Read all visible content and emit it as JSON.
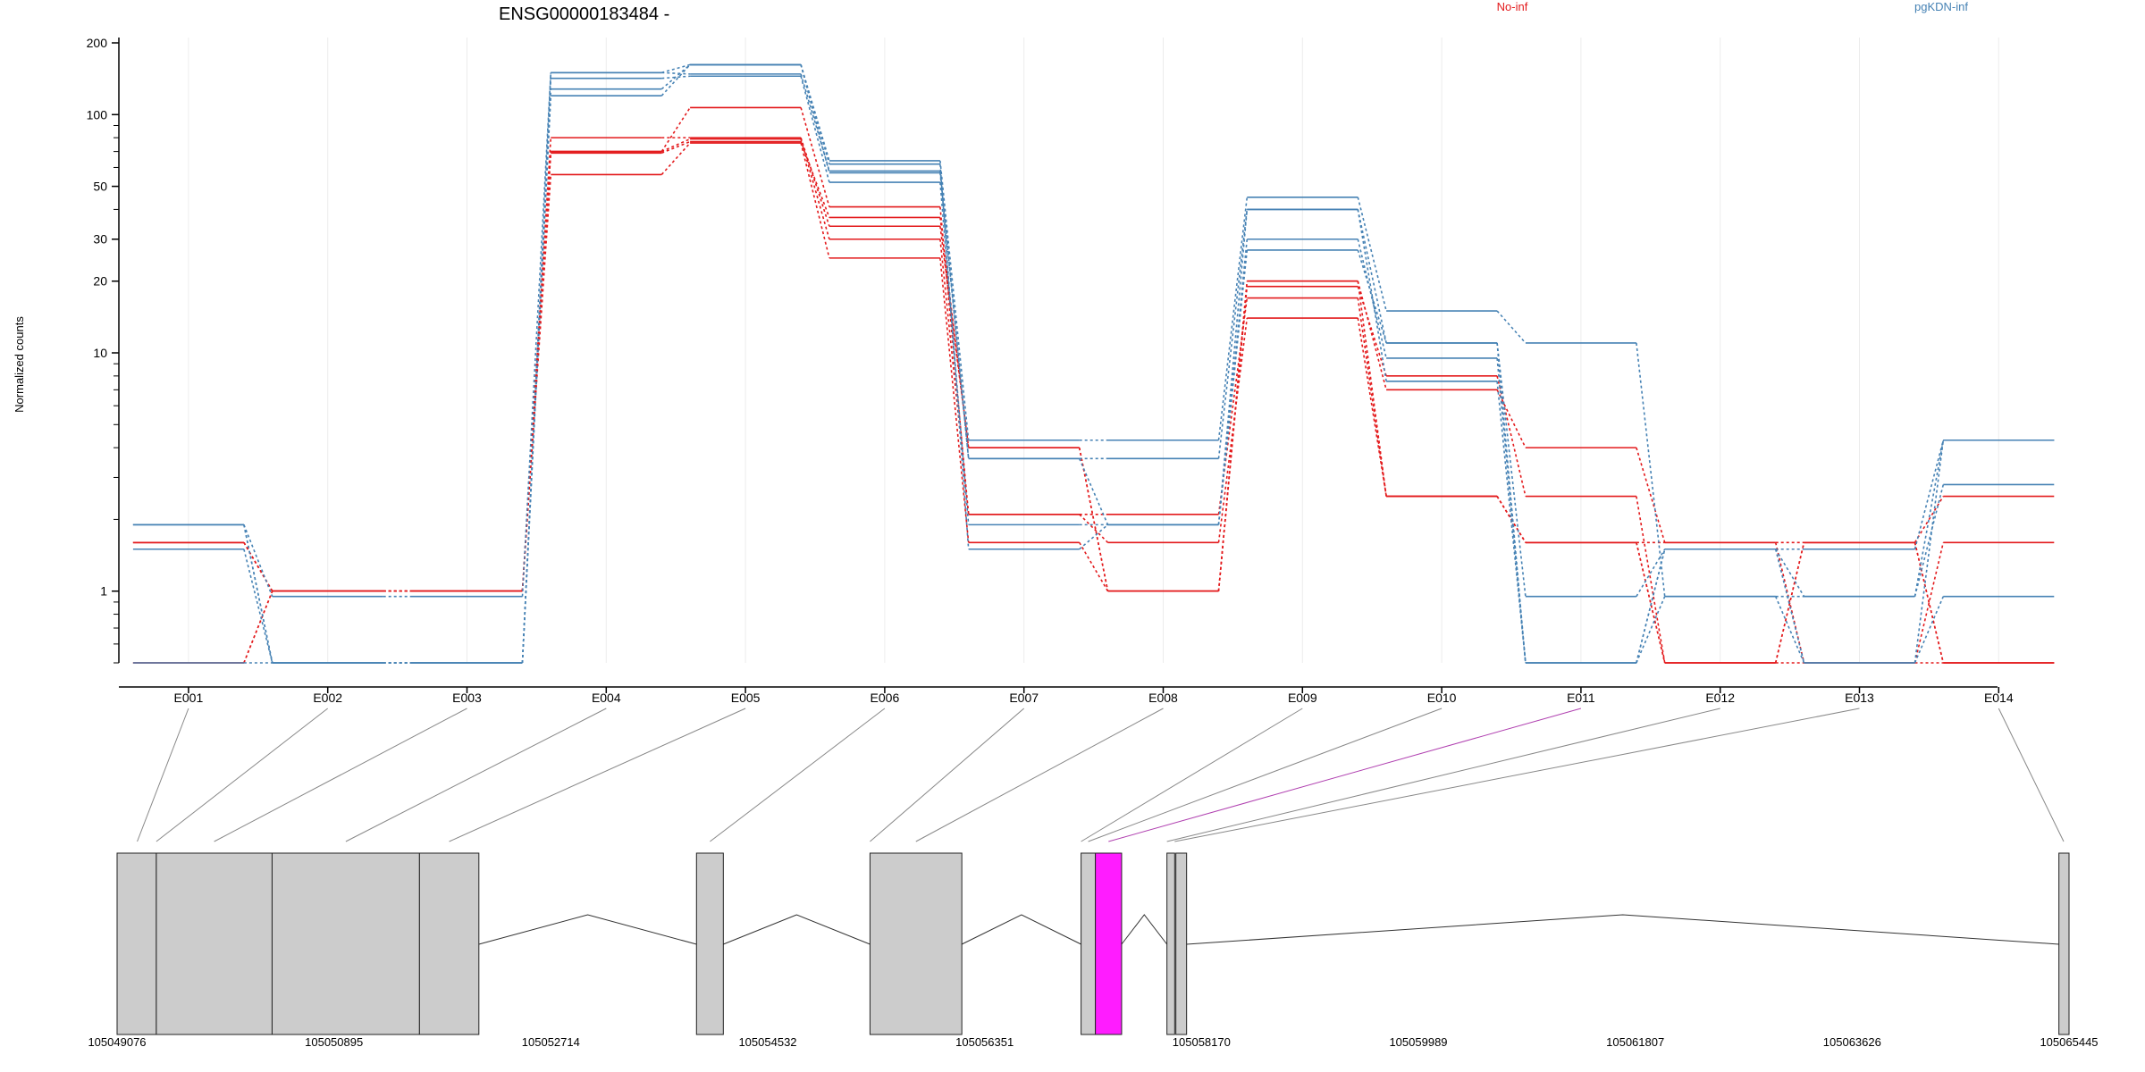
{
  "chart_data": {
    "type": "line",
    "title": "ENSG00000183484 -",
    "ylabel": "Normalized counts",
    "y_scale": "log",
    "ylim": [
      0.5,
      200
    ],
    "y_ticks": [
      1,
      10,
      20,
      30,
      50,
      100,
      200
    ],
    "y_tick_labels": [
      "1",
      "10",
      "20",
      "30",
      "50",
      "100",
      "200"
    ],
    "grid": "vertical lines at exon centers",
    "legend": {
      "placement": "top-right",
      "entries": [
        {
          "label": "No-inf",
          "color": "#e31a1c"
        },
        {
          "label": "pgKDN-inf",
          "color": "#4682b4"
        }
      ]
    },
    "categories": [
      "E001",
      "E002",
      "E003",
      "E004",
      "E005",
      "E006",
      "E007",
      "E008",
      "E009",
      "E010",
      "E011",
      "E012",
      "E013",
      "E014"
    ],
    "highlighted_exon": "E011",
    "series": [
      {
        "group": "No-inf",
        "color": "#e31a1c",
        "values": [
          1.6,
          1.0,
          1.0,
          69,
          77,
          37,
          4.0,
          1.0,
          20,
          7.0,
          4.0,
          1.6,
          1.6,
          0.5
        ]
      },
      {
        "group": "No-inf",
        "color": "#e31a1c",
        "values": [
          1.6,
          1.0,
          1.0,
          56,
          76,
          25,
          1.6,
          1.0,
          19,
          8.0,
          2.5,
          0.5,
          1.6,
          2.5
        ]
      },
      {
        "group": "No-inf",
        "color": "#e31a1c",
        "values": [
          0.5,
          1.0,
          1.0,
          70,
          107,
          41,
          2.1,
          2.1,
          17,
          2.5,
          1.6,
          0.5,
          1.6,
          0.5
        ]
      },
      {
        "group": "No-inf",
        "color": "#e31a1c",
        "values": [
          0.5,
          1.0,
          1.0,
          70,
          79,
          30,
          2.1,
          1.6,
          14,
          2.5,
          1.6,
          1.6,
          0.5,
          0.5
        ]
      },
      {
        "group": "No-inf",
        "color": "#e31a1c",
        "values": [
          1.6,
          1.0,
          1.0,
          80,
          80,
          34,
          4.0,
          1.0,
          20,
          2.5,
          1.6,
          0.5,
          0.5,
          1.6
        ]
      },
      {
        "group": "pgKDN-inf",
        "color": "#4682b4",
        "values": [
          1.9,
          0.95,
          0.95,
          150,
          162,
          64,
          4.3,
          4.3,
          45,
          15,
          11,
          0.95,
          0.95,
          4.3
        ]
      },
      {
        "group": "pgKDN-inf",
        "color": "#4682b4",
        "values": [
          1.9,
          0.5,
          0.5,
          142,
          145,
          52,
          1.9,
          1.9,
          27,
          11,
          0.95,
          1.5,
          1.5,
          4.3
        ]
      },
      {
        "group": "pgKDN-inf",
        "color": "#4682b4",
        "values": [
          1.9,
          0.5,
          0.5,
          128,
          162,
          62,
          1.5,
          1.9,
          30,
          9.5,
          0.5,
          1.5,
          0.95,
          2.8
        ]
      },
      {
        "group": "pgKDN-inf",
        "color": "#4682b4",
        "values": [
          0.5,
          0.5,
          0.5,
          120,
          162,
          57,
          3.6,
          1.9,
          40,
          7.6,
          0.5,
          1.5,
          0.5,
          0.95
        ]
      },
      {
        "group": "pgKDN-inf",
        "color": "#4682b4",
        "values": [
          1.5,
          0.5,
          0.5,
          150,
          148,
          58,
          3.6,
          3.6,
          40,
          11,
          0.5,
          0.95,
          0.5,
          4.3
        ]
      }
    ],
    "gene_model": {
      "x_tick_labels": [
        "105049076",
        "105050895",
        "105052714",
        "105054532",
        "105056351",
        "105058170",
        "105059989",
        "105061807",
        "105063626",
        "105065445"
      ],
      "features": [
        {
          "start": 105049076,
          "end": 105049405,
          "highlighted": false
        },
        {
          "start": 105049405,
          "end": 105050376,
          "highlighted": false
        },
        {
          "start": 105050376,
          "end": 105051612,
          "highlighted": false
        },
        {
          "start": 105051612,
          "end": 105052110,
          "highlighted": false
        },
        {
          "start": 105053935,
          "end": 105054160,
          "highlighted": false
        },
        {
          "start": 105055390,
          "end": 105056160,
          "highlighted": false
        },
        {
          "start": 105057160,
          "end": 105057280,
          "highlighted": false
        },
        {
          "start": 105057280,
          "end": 105057500,
          "highlighted": true
        },
        {
          "start": 105057880,
          "end": 105057945,
          "highlighted": false
        },
        {
          "start": 105057955,
          "end": 105058045,
          "highlighted": false
        },
        {
          "start": 105065360,
          "end": 105065445,
          "highlighted": false
        }
      ],
      "connectors": [
        {
          "exon": "E001",
          "genomic": 105049245
        },
        {
          "exon": "E002",
          "genomic": 105049405
        },
        {
          "exon": "E003",
          "genomic": 105049890
        },
        {
          "exon": "E004",
          "genomic": 105050994
        },
        {
          "exon": "E005",
          "genomic": 105051861
        },
        {
          "exon": "E006",
          "genomic": 105054048
        },
        {
          "exon": "E007",
          "genomic": 105055390
        },
        {
          "exon": "E008",
          "genomic": 105055775
        },
        {
          "exon": "E009",
          "genomic": 105057160
        },
        {
          "exon": "E010",
          "genomic": 105057220
        },
        {
          "exon": "E011",
          "genomic": 105057390
        },
        {
          "exon": "E012",
          "genomic": 105057880
        },
        {
          "exon": "E013",
          "genomic": 105057945
        },
        {
          "exon": "E014",
          "genomic": 105065400
        }
      ],
      "introns": [
        {
          "start": 105052110,
          "end": 105053935
        },
        {
          "start": 105054160,
          "end": 105055390
        },
        {
          "start": 105056160,
          "end": 105057160
        },
        {
          "start": 105057500,
          "end": 105057880
        },
        {
          "start": 105058045,
          "end": 105065360
        }
      ]
    }
  },
  "colors": {
    "no_inf": "#e31a1c",
    "pgkdn_inf": "#4682b4",
    "exon_fill": "#cccccc",
    "highlight": "#ff1cff"
  }
}
